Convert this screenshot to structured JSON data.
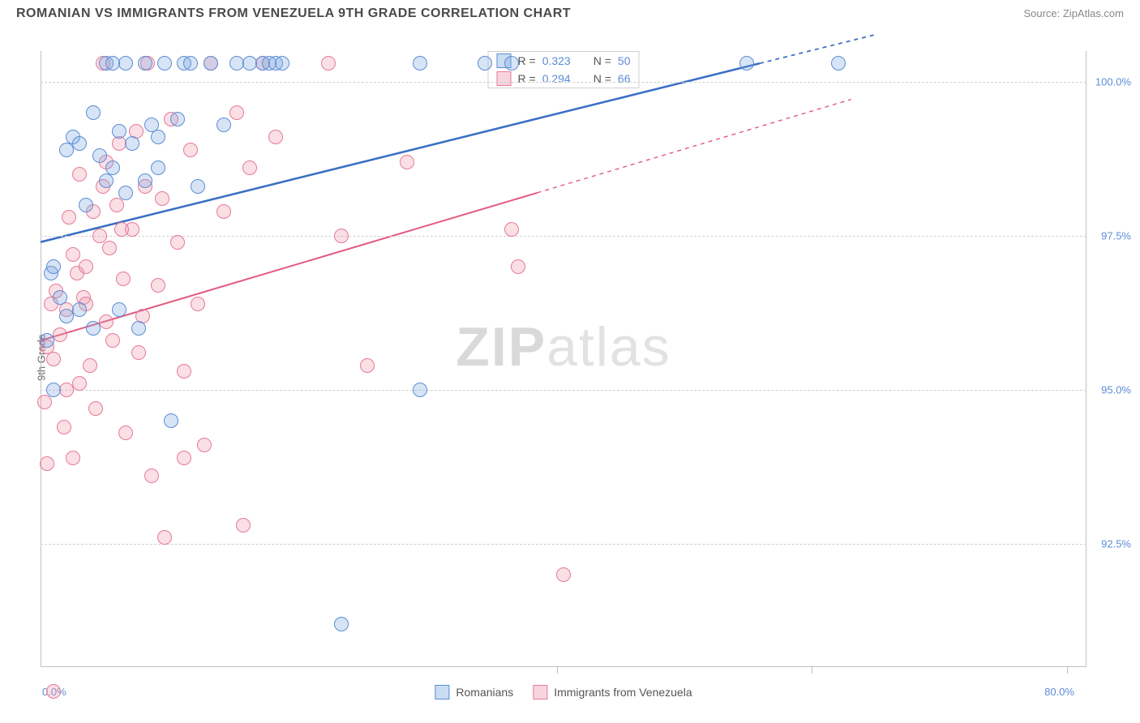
{
  "header": {
    "title": "ROMANIAN VS IMMIGRANTS FROM VENEZUELA 9TH GRADE CORRELATION CHART",
    "source_prefix": "Source: ",
    "source_name": "ZipAtlas.com"
  },
  "chart": {
    "type": "scatter",
    "ylabel": "9th Grade",
    "background_color": "#ffffff",
    "grid_color": "#d0d0d0",
    "axis_color": "#c0c0c0",
    "watermark_text_a": "ZIP",
    "watermark_text_b": "atlas",
    "x_domain": [
      0,
      80
    ],
    "y_domain": [
      90.5,
      100.5
    ],
    "x_ticks": [
      "0.0%",
      "80.0%"
    ],
    "y_gridlines": [
      92.5,
      95.0,
      97.5,
      100.0
    ],
    "y_tick_labels": [
      "92.5%",
      "95.0%",
      "97.5%",
      "100.0%"
    ],
    "x_vticks": [
      39.5,
      59,
      78.5
    ],
    "series": {
      "blue": {
        "label": "Romanians",
        "color_fill": "rgba(123,167,222,0.3)",
        "color_stroke": "#5b8dd6",
        "R": "0.323",
        "N": "50",
        "trend": {
          "x1": 0,
          "y1": 97.4,
          "x2": 55,
          "y2": 100.3,
          "dash_from_x": 55,
          "dash_to_x": 64,
          "line_color": "#3a6fc4",
          "line_width": 2.5
        },
        "points": [
          [
            0.5,
            95.8
          ],
          [
            0.8,
            96.9
          ],
          [
            1,
            97.0
          ],
          [
            1,
            95.0
          ],
          [
            1.5,
            96.5
          ],
          [
            2,
            96.2
          ],
          [
            2,
            98.9
          ],
          [
            2.5,
            99.1
          ],
          [
            3,
            99.0
          ],
          [
            3,
            96.3
          ],
          [
            3.5,
            98.0
          ],
          [
            4,
            99.5
          ],
          [
            4,
            96.0
          ],
          [
            4.5,
            98.8
          ],
          [
            5,
            100.3
          ],
          [
            5.5,
            100.3
          ],
          [
            5.5,
            98.6
          ],
          [
            6,
            99.2
          ],
          [
            6,
            96.3
          ],
          [
            6.5,
            100.3
          ],
          [
            7,
            99.0
          ],
          [
            7.5,
            96.0
          ],
          [
            8,
            100.3
          ],
          [
            8,
            98.4
          ],
          [
            8.5,
            99.3
          ],
          [
            9,
            98.6
          ],
          [
            9.5,
            100.3
          ],
          [
            10,
            94.5
          ],
          [
            10.5,
            99.4
          ],
          [
            11,
            100.3
          ],
          [
            11.5,
            100.3
          ],
          [
            12,
            98.3
          ],
          [
            13,
            100.3
          ],
          [
            14,
            99.3
          ],
          [
            15,
            100.3
          ],
          [
            16,
            100.3
          ],
          [
            17,
            100.3
          ],
          [
            17.5,
            100.3
          ],
          [
            18,
            100.3
          ],
          [
            18.5,
            100.3
          ],
          [
            23,
            91.2
          ],
          [
            29,
            100.3
          ],
          [
            29,
            95.0
          ],
          [
            34,
            100.3
          ],
          [
            36,
            100.3
          ],
          [
            54,
            100.3
          ],
          [
            61,
            100.3
          ],
          [
            5,
            98.4
          ],
          [
            6.5,
            98.2
          ],
          [
            9,
            99.1
          ]
        ]
      },
      "pink": {
        "label": "Immigrants from Venezuela",
        "color_fill": "rgba(237,150,170,0.3)",
        "color_stroke": "#e67a95",
        "R": "0.294",
        "N": "66",
        "trend": {
          "x1": 0,
          "y1": 95.8,
          "x2": 38,
          "y2": 98.2,
          "dash_from_x": 38,
          "dash_to_x": 62,
          "line_color": "#e35a7e",
          "line_width": 2
        },
        "points": [
          [
            0.3,
            94.8
          ],
          [
            0.5,
            95.7
          ],
          [
            0.5,
            93.8
          ],
          [
            0.8,
            96.4
          ],
          [
            1,
            95.5
          ],
          [
            1,
            90.1
          ],
          [
            1.2,
            96.6
          ],
          [
            1.5,
            95.9
          ],
          [
            1.8,
            94.4
          ],
          [
            2,
            96.3
          ],
          [
            2,
            95.0
          ],
          [
            2.2,
            97.8
          ],
          [
            2.5,
            97.2
          ],
          [
            2.5,
            93.9
          ],
          [
            2.8,
            96.9
          ],
          [
            3,
            95.1
          ],
          [
            3,
            98.5
          ],
          [
            3.3,
            96.5
          ],
          [
            3.5,
            97.0
          ],
          [
            3.8,
            95.4
          ],
          [
            4,
            97.9
          ],
          [
            4.2,
            94.7
          ],
          [
            4.5,
            97.5
          ],
          [
            4.8,
            100.3
          ],
          [
            5,
            98.7
          ],
          [
            5,
            96.1
          ],
          [
            5.3,
            97.3
          ],
          [
            5.5,
            95.8
          ],
          [
            5.8,
            98.0
          ],
          [
            6,
            99.0
          ],
          [
            6.3,
            96.8
          ],
          [
            6.5,
            94.3
          ],
          [
            7,
            97.6
          ],
          [
            7.3,
            99.2
          ],
          [
            7.5,
            95.6
          ],
          [
            8,
            98.3
          ],
          [
            8.2,
            100.3
          ],
          [
            8.5,
            93.6
          ],
          [
            9,
            96.7
          ],
          [
            9.3,
            98.1
          ],
          [
            9.5,
            92.6
          ],
          [
            10,
            99.4
          ],
          [
            10.5,
            97.4
          ],
          [
            11,
            95.3
          ],
          [
            11.5,
            98.9
          ],
          [
            12,
            96.4
          ],
          [
            12.5,
            94.1
          ],
          [
            13,
            100.3
          ],
          [
            14,
            97.9
          ],
          [
            15,
            99.5
          ],
          [
            15.5,
            92.8
          ],
          [
            16,
            98.6
          ],
          [
            17,
            100.3
          ],
          [
            18,
            99.1
          ],
          [
            22,
            100.3
          ],
          [
            23,
            97.5
          ],
          [
            25,
            95.4
          ],
          [
            28,
            98.7
          ],
          [
            36,
            97.6
          ],
          [
            36.5,
            97.0
          ],
          [
            40,
            92.0
          ],
          [
            3.5,
            96.4
          ],
          [
            4.8,
            98.3
          ],
          [
            6.2,
            97.6
          ],
          [
            7.8,
            96.2
          ],
          [
            11,
            93.9
          ]
        ]
      }
    },
    "legend_stats": {
      "R_label": "R =",
      "N_label": "N ="
    }
  }
}
